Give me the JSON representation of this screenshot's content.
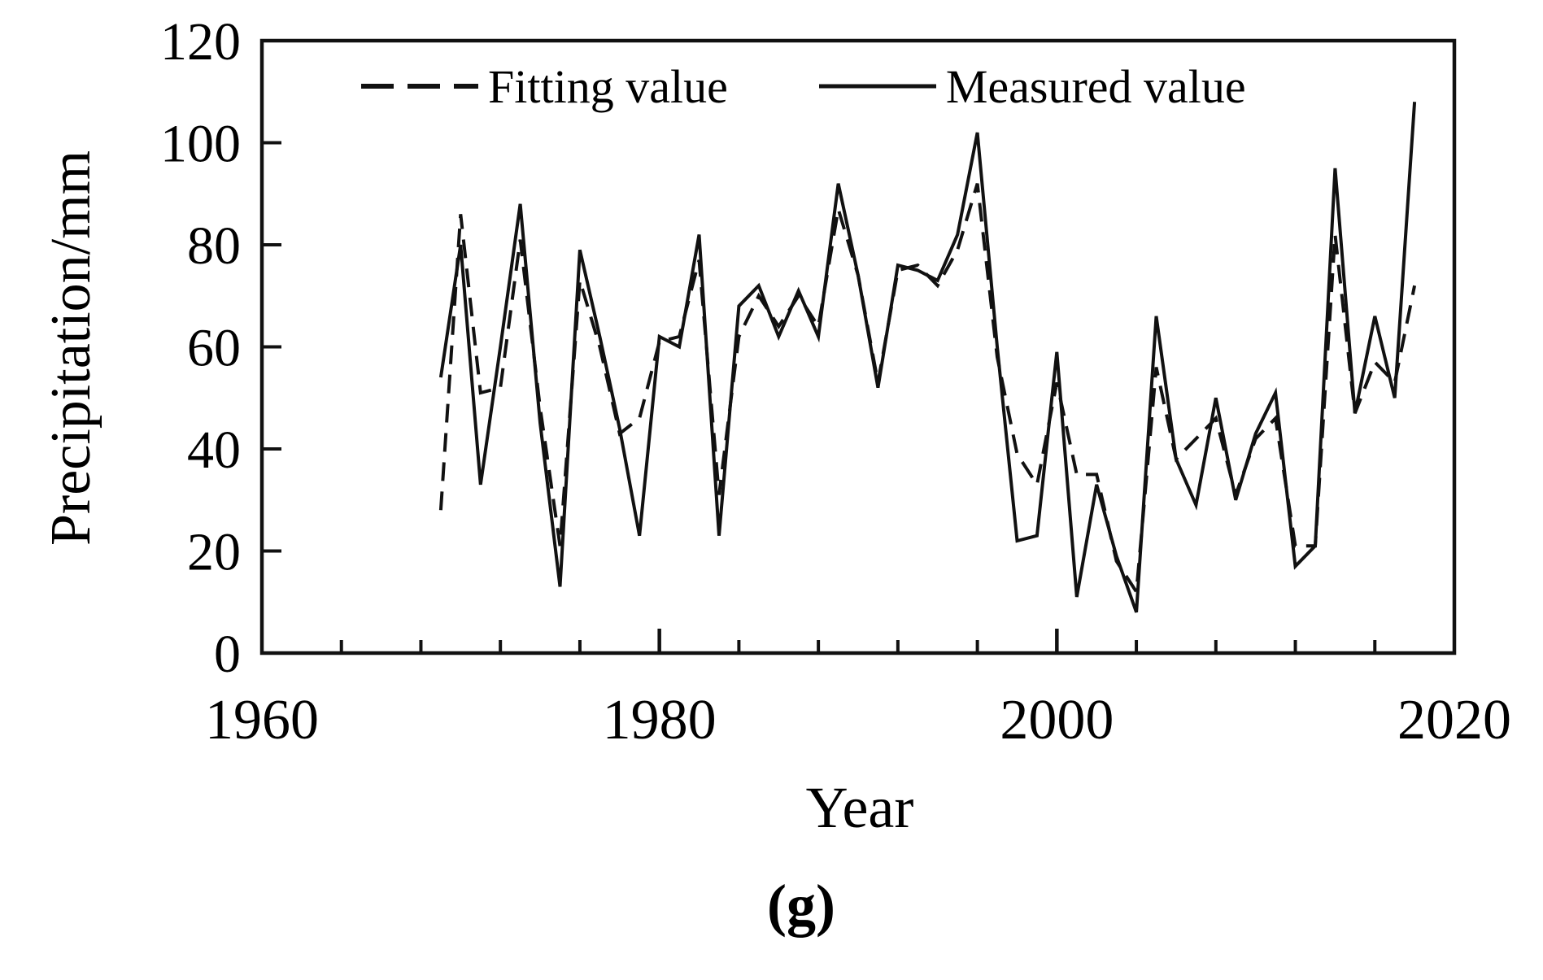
{
  "figure": {
    "caption": "(g)"
  },
  "legend": {
    "fitting_label": "Fitting value",
    "measured_label": "Measured value"
  },
  "colors": {
    "line": "#111111",
    "background": "#ffffff",
    "text": "#000000"
  },
  "chart_data": {
    "type": "line",
    "title": "",
    "xlabel": "Year",
    "ylabel": "Precipitation/mm",
    "xlim": [
      1960,
      2020
    ],
    "ylim": [
      0,
      120
    ],
    "grid": false,
    "legend_position": "top-inside",
    "x_major_ticks": [
      1960,
      1980,
      2000,
      2020
    ],
    "x_minor_ticks": [
      1964,
      1968,
      1972,
      1976,
      1984,
      1988,
      1992,
      1996,
      2004,
      2008,
      2012,
      2016
    ],
    "y_ticks": [
      0,
      20,
      40,
      60,
      80,
      100,
      120
    ],
    "x": [
      1969,
      1970,
      1971,
      1972,
      1973,
      1974,
      1975,
      1976,
      1977,
      1978,
      1979,
      1980,
      1981,
      1982,
      1983,
      1984,
      1985,
      1986,
      1987,
      1988,
      1989,
      1990,
      1991,
      1992,
      1993,
      1994,
      1995,
      1996,
      1997,
      1998,
      1999,
      2000,
      2001,
      2002,
      2003,
      2004,
      2005,
      2006,
      2007,
      2008,
      2009,
      2010,
      2011,
      2012,
      2013,
      2014,
      2015,
      2016,
      2017,
      2018
    ],
    "series": [
      {
        "name": "Fitting value",
        "style": "dashed",
        "color": "#111111",
        "values": [
          28,
          86,
          51,
          52,
          81,
          48,
          21,
          73,
          60,
          43,
          46,
          61,
          62,
          77,
          31,
          62,
          70,
          64,
          70,
          64,
          87,
          74,
          53,
          75,
          76,
          72,
          79,
          92,
          58,
          39,
          33,
          53,
          35,
          35,
          18,
          12,
          56,
          38,
          42,
          46,
          31,
          42,
          46,
          21,
          21,
          82,
          47,
          57,
          53,
          72
        ]
      },
      {
        "name": "Measured value",
        "style": "solid",
        "color": "#111111",
        "values": [
          54,
          80,
          33,
          60,
          88,
          45,
          13,
          79,
          62,
          44,
          23,
          62,
          60,
          82,
          23,
          68,
          72,
          62,
          71,
          62,
          92,
          74,
          52,
          76,
          75,
          73,
          82,
          102,
          60,
          22,
          23,
          59,
          11,
          33,
          19,
          8,
          66,
          38,
          29,
          50,
          30,
          43,
          51,
          17,
          21,
          95,
          47,
          66,
          50,
          108
        ]
      }
    ]
  }
}
